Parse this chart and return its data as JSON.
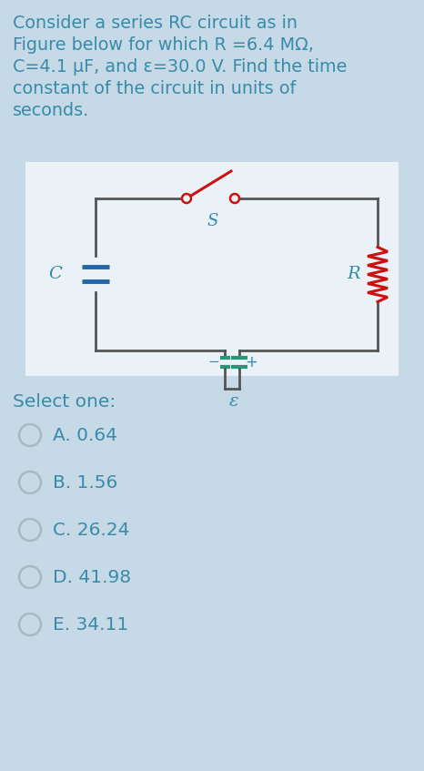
{
  "background_color": "#c5d9e6",
  "text_color": "#3a8aaa",
  "question_text_lines": [
    "Consider a series RC circuit as in",
    "Figure below for which R =6.4 MΩ,",
    "C=4.1 μF, and ε=30.0 V. Find the time",
    "constant of the circuit in units of",
    "seconds."
  ],
  "circuit_bg": "#eaf2f7",
  "select_text": "Select one:",
  "options": [
    "A. 0.64",
    "B. 1.56",
    "C. 26.24",
    "D. 41.98",
    "E. 34.11"
  ],
  "option_text_color": "#3a8aaa",
  "radio_edge_color": "#aab8c0",
  "wire_color": "#555555",
  "cap_color": "#2266aa",
  "resistor_color": "#cc1111",
  "switch_color": "#cc1111",
  "battery_color": "#229977",
  "question_fontsize": 13.8,
  "option_fontsize": 14.5,
  "select_fontsize": 14.5,
  "label_fontsize": 14
}
